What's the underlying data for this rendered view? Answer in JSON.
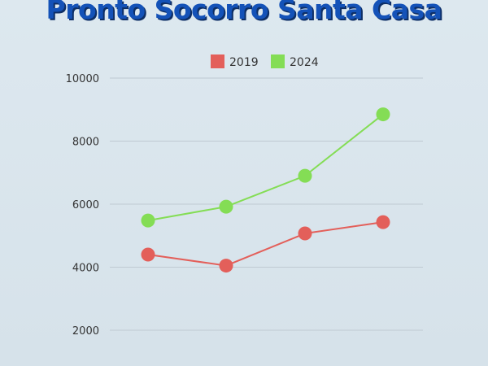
{
  "title": "Pronto Socorro Santa Casa",
  "chart_data": {
    "type": "line",
    "title": "Pronto Socorro Santa Casa",
    "xlabel": "",
    "ylabel": "",
    "ylim": [
      1500,
      10000
    ],
    "yticks": [
      2000,
      4000,
      6000,
      8000,
      10000
    ],
    "x": [
      1,
      2,
      3,
      4
    ],
    "series": [
      {
        "name": "2019",
        "color": "#e35f5a",
        "values": [
          4400,
          4050,
          5070,
          5430
        ]
      },
      {
        "name": "2024",
        "color": "#84dd55",
        "values": [
          5480,
          5920,
          6900,
          8850
        ]
      }
    ],
    "grid": true,
    "legend": "top-center"
  }
}
